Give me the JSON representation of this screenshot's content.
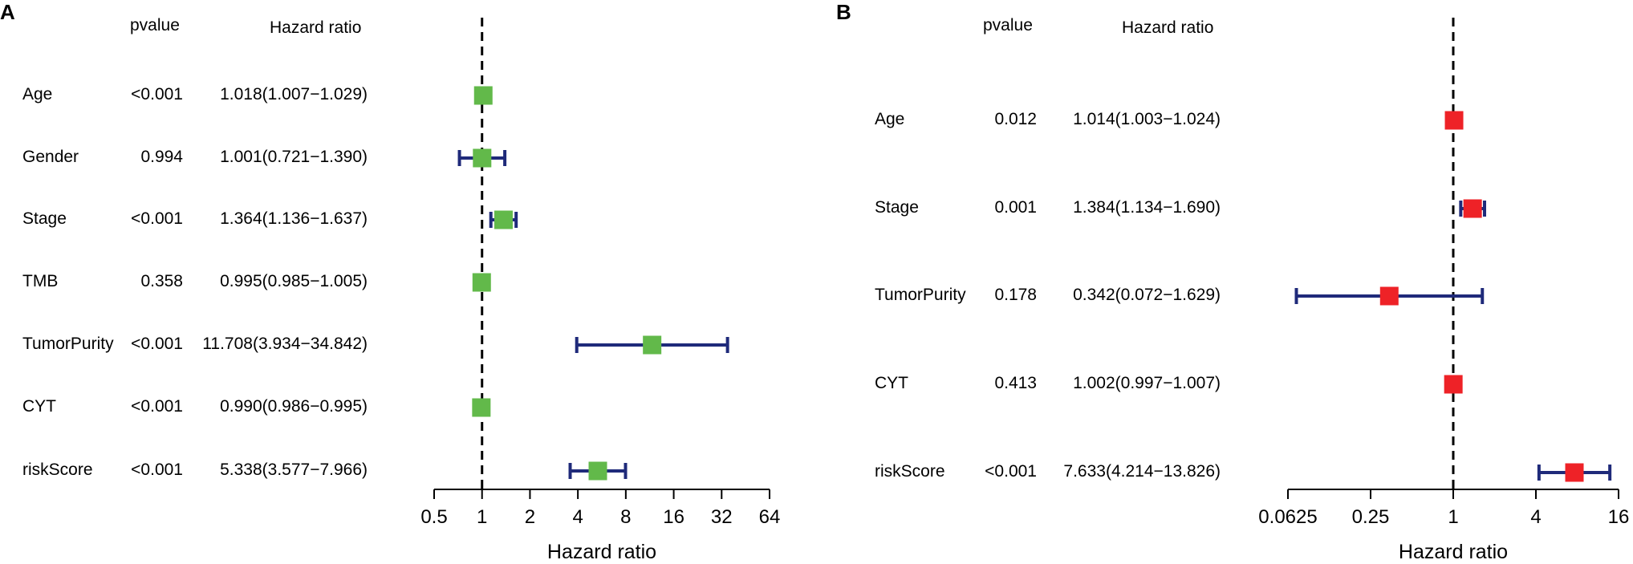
{
  "chart_data": [
    {
      "type": "forest",
      "panel_label": "A",
      "header_pvalue": "pvalue",
      "header_hr": "Hazard ratio",
      "xlabel": "Hazard ratio",
      "xscale": "log2",
      "xlim": [
        0.5,
        64
      ],
      "ticks": [
        0.5,
        1,
        2,
        4,
        8,
        16,
        32,
        64
      ],
      "tick_labels": [
        "0.5",
        "1",
        "2",
        "4",
        "8",
        "16",
        "32",
        "64"
      ],
      "reference_line": 1,
      "marker_color": "#62b94a",
      "ci_color": "#1f2a7a",
      "rows": [
        {
          "name": "Age",
          "pvalue": "<0.001",
          "hr_text": "1.018(1.007−1.029)",
          "hr": 1.018,
          "lo": 1.007,
          "hi": 1.029
        },
        {
          "name": "Gender",
          "pvalue": "0.994",
          "hr_text": "1.001(0.721−1.390)",
          "hr": 1.001,
          "lo": 0.721,
          "hi": 1.39
        },
        {
          "name": "Stage",
          "pvalue": "<0.001",
          "hr_text": "1.364(1.136−1.637)",
          "hr": 1.364,
          "lo": 1.136,
          "hi": 1.637
        },
        {
          "name": "TMB",
          "pvalue": "0.358",
          "hr_text": "0.995(0.985−1.005)",
          "hr": 0.995,
          "lo": 0.985,
          "hi": 1.005
        },
        {
          "name": "TumorPurity",
          "pvalue": "<0.001",
          "hr_text": "11.708(3.934−34.842)",
          "hr": 11.708,
          "lo": 3.934,
          "hi": 34.842
        },
        {
          "name": "CYT",
          "pvalue": "<0.001",
          "hr_text": "0.990(0.986−0.995)",
          "hr": 0.99,
          "lo": 0.986,
          "hi": 0.995
        },
        {
          "name": "riskScore",
          "pvalue": "<0.001",
          "hr_text": "5.338(3.577−7.966)",
          "hr": 5.338,
          "lo": 3.577,
          "hi": 7.966
        }
      ]
    },
    {
      "type": "forest",
      "panel_label": "B",
      "header_pvalue": "pvalue",
      "header_hr": "Hazard ratio",
      "xlabel": "Hazard ratio",
      "xscale": "log2",
      "xlim": [
        0.0625,
        16
      ],
      "ticks": [
        0.0625,
        0.25,
        1,
        4,
        16
      ],
      "tick_labels": [
        "0.0625",
        "0.25",
        "1",
        "4",
        "16"
      ],
      "reference_line": 1,
      "marker_color": "#ee2227",
      "ci_color": "#1f2a7a",
      "rows": [
        {
          "name": "Age",
          "pvalue": "0.012",
          "hr_text": "1.014(1.003−1.024)",
          "hr": 1.014,
          "lo": 1.003,
          "hi": 1.024
        },
        {
          "name": "Stage",
          "pvalue": "0.001",
          "hr_text": "1.384(1.134−1.690)",
          "hr": 1.384,
          "lo": 1.134,
          "hi": 1.69
        },
        {
          "name": "TumorPurity",
          "pvalue": "0.178",
          "hr_text": "0.342(0.072−1.629)",
          "hr": 0.342,
          "lo": 0.072,
          "hi": 1.629
        },
        {
          "name": "CYT",
          "pvalue": "0.413",
          "hr_text": "1.002(0.997−1.007)",
          "hr": 1.002,
          "lo": 0.997,
          "hi": 1.007
        },
        {
          "name": "riskScore",
          "pvalue": "<0.001",
          "hr_text": "7.633(4.214−13.826)",
          "hr": 7.633,
          "lo": 4.214,
          "hi": 13.826
        }
      ]
    }
  ]
}
